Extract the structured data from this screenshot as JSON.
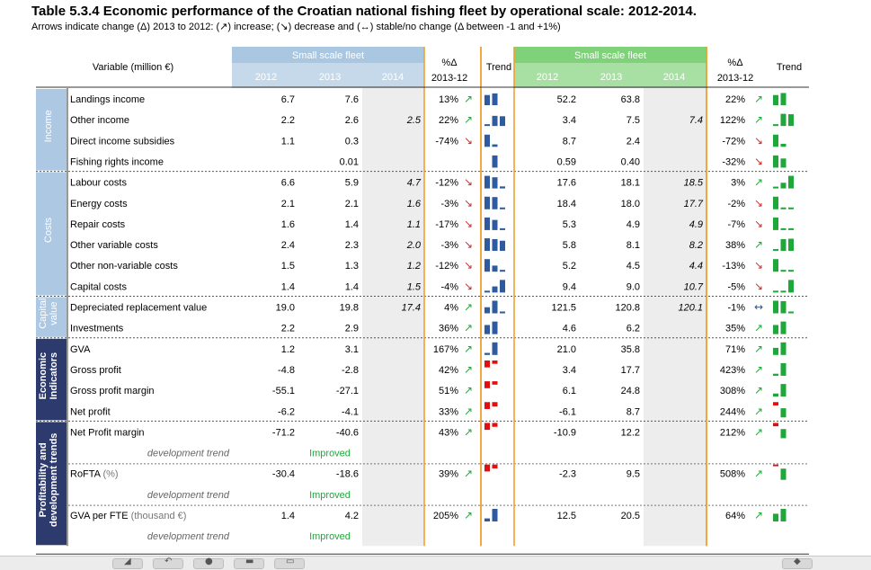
{
  "title": "Table 5.3.4 Economic performance of the Croatian national fishing fleet by operational scale: 2012-2014.",
  "subtitle": "Arrows indicate change (Δ) 2013 to 2012: (↗) increase; (↘) decrease and (↔) stable/no change (Δ between -1 and +1%)",
  "colors": {
    "ssf": "#a9c7e0",
    "lsf": "#7fd17a",
    "orange": "#f0a030",
    "blue": "#2f5a9e",
    "green": "#1fa83a",
    "red": "#e01010",
    "groupbox": "#adc8e3",
    "groupdark": "#2d3a6e",
    "shade": "#ededed"
  },
  "header": {
    "variable": "Variable (million €)",
    "ssf_title": "Small scale fleet",
    "lsf_title": "Small scale fleet",
    "years": [
      "2012",
      "2013",
      "2014"
    ],
    "pct_line1": "%Δ",
    "pct_line2": "2013-12",
    "trend": "Trend"
  },
  "groups": [
    {
      "label": "Income",
      "dark": false
    },
    {
      "label": "Costs",
      "dark": false
    },
    {
      "label": "Capital\nvalue",
      "dark": false
    },
    {
      "label": "Economic\nIndicators",
      "dark": true
    },
    {
      "label": "Profitability and\ndevelopment trends",
      "dark": true
    }
  ],
  "rows": [
    {
      "label": "Landings income",
      "s": [
        "6.7",
        "7.6",
        "",
        "13%",
        "up"
      ],
      "l": [
        "52.2",
        "63.8",
        "",
        "22%",
        "up"
      ],
      "st": [
        0.5,
        0.58,
        0
      ],
      "lt": [
        0.5,
        0.6,
        0
      ]
    },
    {
      "label": "Other income",
      "s": [
        "2.2",
        "2.6",
        "2.5",
        "22%",
        "up"
      ],
      "l": [
        "3.4",
        "7.5",
        "7.4",
        "122%",
        "up"
      ],
      "st": [
        0.05,
        0.5,
        0.48
      ],
      "lt": [
        0.05,
        0.6,
        0.58
      ]
    },
    {
      "label": "Direct income subsidies",
      "s": [
        "1.1",
        "0.3",
        "",
        "-74%",
        "down"
      ],
      "l": [
        "8.7",
        "2.4",
        "",
        "-72%",
        "down"
      ],
      "st": [
        0.6,
        0.12,
        0
      ],
      "lt": [
        0.6,
        0.15,
        0
      ]
    },
    {
      "label": "Fishing rights income",
      "s": [
        "",
        "0.01",
        "",
        "",
        ""
      ],
      "l": [
        "0.59",
        "0.40",
        "",
        "-32%",
        "down"
      ],
      "st": [
        0,
        0.6,
        0
      ],
      "lt": [
        0.6,
        0.45,
        0
      ]
    },
    {
      "label": "Labour costs",
      "s": [
        "6.6",
        "5.9",
        "4.7",
        "-12%",
        "down"
      ],
      "l": [
        "17.6",
        "18.1",
        "18.5",
        "3%",
        "up"
      ],
      "st": [
        0.62,
        0.55,
        0.1
      ],
      "lt": [
        0.08,
        0.28,
        0.62
      ]
    },
    {
      "label": "Energy costs",
      "s": [
        "2.1",
        "2.1",
        "1.6",
        "-3%",
        "down"
      ],
      "l": [
        "18.4",
        "18.0",
        "17.7",
        "-2%",
        "down"
      ],
      "st": [
        0.62,
        0.6,
        0.08
      ],
      "lt": [
        0.62,
        0.08,
        0.05
      ]
    },
    {
      "label": "Repair costs",
      "s": [
        "1.6",
        "1.4",
        "1.1",
        "-17%",
        "down"
      ],
      "l": [
        "5.3",
        "4.9",
        "4.9",
        "-7%",
        "down"
      ],
      "st": [
        0.62,
        0.5,
        0.08
      ],
      "lt": [
        0.62,
        0.08,
        0.08
      ]
    },
    {
      "label": "Other variable costs",
      "s": [
        "2.4",
        "2.3",
        "2.0",
        "-3%",
        "down"
      ],
      "l": [
        "5.8",
        "8.1",
        "8.2",
        "38%",
        "up"
      ],
      "st": [
        0.62,
        0.58,
        0.5
      ],
      "lt": [
        0.08,
        0.58,
        0.6
      ]
    },
    {
      "label": "Other non-variable costs",
      "s": [
        "1.5",
        "1.3",
        "1.2",
        "-12%",
        "down"
      ],
      "l": [
        "5.2",
        "4.5",
        "4.4",
        "-13%",
        "down"
      ],
      "st": [
        0.62,
        0.3,
        0.08
      ],
      "lt": [
        0.62,
        0.08,
        0.05
      ]
    },
    {
      "label": "Capital costs",
      "s": [
        "1.4",
        "1.4",
        "1.5",
        "-4%",
        "down"
      ],
      "l": [
        "9.4",
        "9.0",
        "10.7",
        "-5%",
        "down"
      ],
      "st": [
        0.08,
        0.3,
        0.62
      ],
      "lt": [
        0.05,
        0.08,
        0.62
      ]
    },
    {
      "label": "Depreciated replacement value",
      "s": [
        "19.0",
        "19.8",
        "17.4",
        "4%",
        "up"
      ],
      "l": [
        "121.5",
        "120.8",
        "120.1",
        "-1%",
        "flat"
      ],
      "st": [
        0.3,
        0.62,
        0.08
      ],
      "lt": [
        0.62,
        0.6,
        0.05
      ]
    },
    {
      "label": "Investments",
      "s": [
        "2.2",
        "2.9",
        "",
        "36%",
        "up"
      ],
      "l": [
        "4.6",
        "6.2",
        "",
        "35%",
        "up"
      ],
      "st": [
        0.45,
        0.62,
        0
      ],
      "lt": [
        0.45,
        0.62,
        0
      ]
    },
    {
      "label": "GVA",
      "s": [
        "1.2",
        "3.1",
        "",
        "167%",
        "up"
      ],
      "l": [
        "21.0",
        "35.8",
        "",
        "71%",
        "up"
      ],
      "st": [
        0.1,
        0.62,
        0
      ],
      "lt": [
        0.35,
        0.62,
        0
      ]
    },
    {
      "label": "Gross profit",
      "s": [
        "-4.8",
        "-2.8",
        "",
        "42%",
        "up"
      ],
      "l": [
        "3.4",
        "17.7",
        "",
        "423%",
        "up"
      ],
      "st": [
        -0.62,
        -0.3,
        0
      ],
      "lt": [
        0.1,
        0.62,
        0
      ]
    },
    {
      "label": "Gross profit margin",
      "s": [
        "-55.1",
        "-27.1",
        "",
        "51%",
        "up"
      ],
      "l": [
        "6.1",
        "24.8",
        "",
        "308%",
        "up"
      ],
      "st": [
        -0.62,
        -0.3,
        0
      ],
      "lt": [
        0.15,
        0.62,
        0
      ]
    },
    {
      "label": "Net profit",
      "s": [
        "-6.2",
        "-4.1",
        "",
        "33%",
        "up"
      ],
      "l": [
        "-6.1",
        "8.7",
        "",
        "244%",
        "up"
      ],
      "st": [
        -0.62,
        -0.4,
        0
      ],
      "lt": [
        -0.3,
        0.45,
        0
      ]
    },
    {
      "label": "Net Profit margin",
      "s": [
        "-71.2",
        "-40.6",
        "",
        "43%",
        "up"
      ],
      "l": [
        "-10.9",
        "12.2",
        "",
        "212%",
        "up"
      ],
      "st": [
        -0.62,
        -0.35,
        0
      ],
      "lt": [
        -0.3,
        0.45,
        0
      ]
    },
    {
      "label": "development trend",
      "sub": true,
      "s": [
        "",
        "Improved",
        "",
        "",
        ""
      ],
      "l": [
        "",
        "",
        "",
        "",
        ""
      ]
    },
    {
      "label": "RoFTA",
      "unit": " (%)",
      "s": [
        "-30.4",
        "-18.6",
        "",
        "39%",
        "up"
      ],
      "l": [
        "-2.3",
        "9.5",
        "",
        "508%",
        "up"
      ],
      "st": [
        -0.62,
        -0.35,
        0
      ],
      "lt": [
        -0.15,
        0.55,
        0
      ]
    },
    {
      "label": "development trend",
      "sub": true,
      "s": [
        "",
        "Improved",
        "",
        "",
        ""
      ],
      "l": [
        "",
        "",
        "",
        "",
        ""
      ]
    },
    {
      "label": "GVA per FTE",
      "unit": " (thousand €)",
      "s": [
        "1.4",
        "4.2",
        "",
        "205%",
        "up"
      ],
      "l": [
        "12.5",
        "20.5",
        "",
        "64%",
        "up"
      ],
      "st": [
        0.15,
        0.62,
        0
      ],
      "lt": [
        0.38,
        0.62,
        0
      ]
    },
    {
      "label": "development trend",
      "sub": true,
      "s": [
        "",
        "Improved",
        "",
        "",
        ""
      ],
      "l": [
        "",
        "",
        "",
        "",
        ""
      ]
    }
  ],
  "arrows": {
    "up": "↗",
    "down": "↘",
    "flat": "↔"
  }
}
